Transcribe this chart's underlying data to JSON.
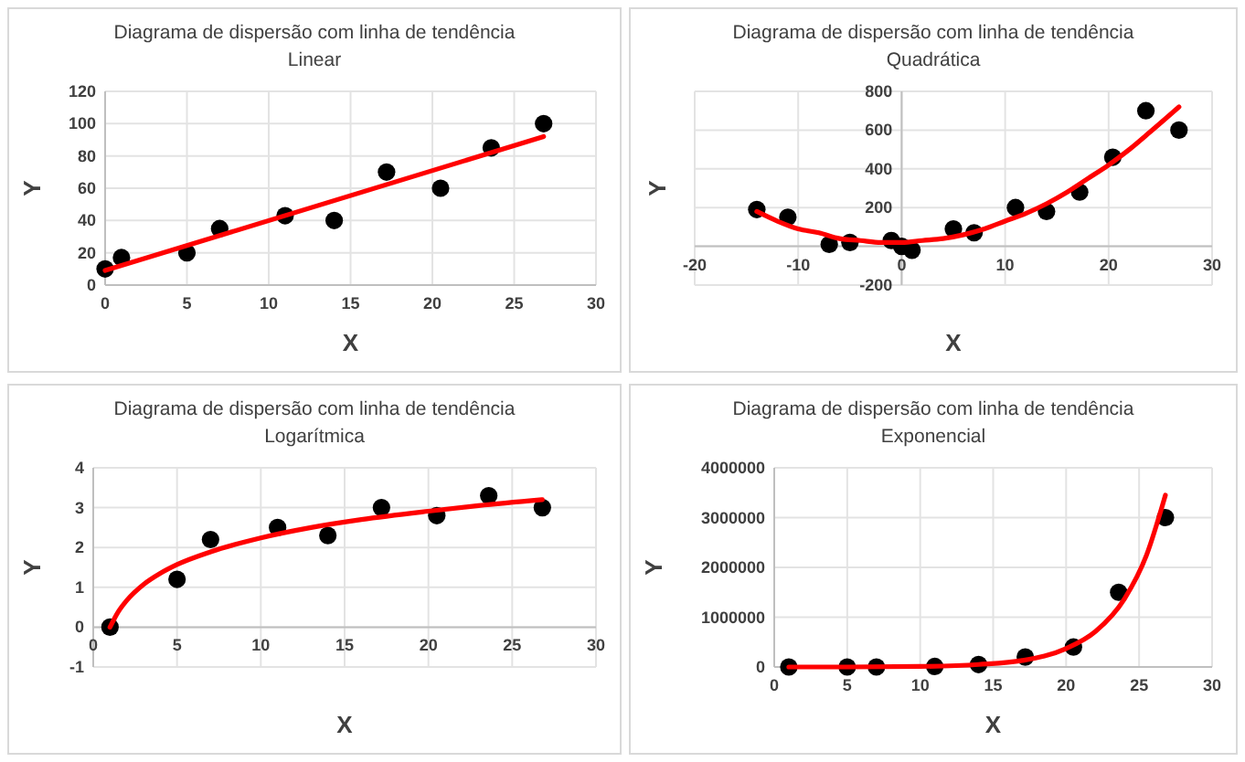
{
  "chart_data": [
    {
      "type": "scatter",
      "title": "Diagrama de dispersão com linha de tendência",
      "subtitle": "Linear",
      "xlabel": "X",
      "ylabel": "Y",
      "xlim": [
        0,
        30
      ],
      "xticks": [
        0,
        5,
        10,
        15,
        20,
        25,
        30
      ],
      "ylim": [
        0,
        120
      ],
      "yticks": [
        0,
        20,
        40,
        60,
        80,
        100,
        120
      ],
      "grid": true,
      "series": [
        {
          "type": "scatter",
          "color": "#000000",
          "marker": "circle",
          "x": [
            0,
            1,
            5,
            7,
            11,
            14,
            17.2,
            20.5,
            23.6,
            26.8
          ],
          "values": [
            10,
            17,
            20,
            35,
            43,
            40,
            70,
            60,
            85,
            100
          ]
        },
        {
          "type": "line",
          "color": "#ff0000",
          "marker": "none",
          "x": [
            0,
            26.8
          ],
          "values": [
            9,
            92
          ]
        }
      ]
    },
    {
      "type": "scatter",
      "title": "Diagrama de dispersão com linha de tendência",
      "subtitle": "Quadrática",
      "xlabel": "X",
      "ylabel": "Y",
      "xlim": [
        -20,
        30
      ],
      "xticks": [
        -20,
        -10,
        0,
        10,
        20,
        30
      ],
      "ylim": [
        -200,
        800
      ],
      "yticks": [
        -200,
        {
          "value": 0,
          "label": null
        },
        200,
        400,
        600,
        800
      ],
      "grid": true,
      "series": [
        {
          "type": "scatter",
          "color": "#000000",
          "marker": "circle",
          "x": [
            -14,
            -11,
            -7,
            -5,
            -1,
            0,
            1,
            5,
            7,
            11,
            14,
            17.2,
            20.4,
            23.6,
            26.8
          ],
          "values": [
            190,
            150,
            10,
            20,
            30,
            0,
            -20,
            90,
            70,
            200,
            180,
            280,
            460,
            700,
            600
          ]
        },
        {
          "type": "line",
          "color": "#ff0000",
          "marker": "none",
          "x": [
            -14,
            -12,
            -10,
            -8,
            -6,
            -4,
            -2,
            0,
            2,
            4,
            6,
            8,
            10,
            12,
            14,
            16,
            18,
            20,
            22,
            24,
            26.8
          ],
          "values": [
            180,
            130,
            90,
            70,
            40,
            30,
            20,
            20,
            30,
            40,
            60,
            90,
            130,
            170,
            220,
            280,
            350,
            420,
            500,
            590,
            720
          ]
        }
      ]
    },
    {
      "type": "scatter",
      "title": "Diagrama de dispersão com linha de tendência",
      "subtitle": "Logarítmica",
      "xlabel": "X",
      "ylabel": "Y",
      "xlim": [
        0,
        30
      ],
      "xticks": [
        0,
        5,
        10,
        15,
        20,
        25,
        30
      ],
      "ylim": [
        -1,
        4
      ],
      "yticks": [
        -1,
        0,
        1,
        2,
        3,
        4
      ],
      "grid": true,
      "series": [
        {
          "type": "scatter",
          "color": "#000000",
          "marker": "circle",
          "x": [
            1,
            5,
            7,
            11,
            14,
            17.2,
            20.5,
            23.6,
            26.8
          ],
          "values": [
            0,
            1.2,
            2.2,
            2.5,
            2.3,
            3,
            2.8,
            3.3,
            3
          ]
        },
        {
          "type": "line",
          "color": "#ff0000",
          "marker": "none",
          "x": [
            1,
            1.5,
            2,
            3,
            4,
            5,
            7,
            10,
            13,
            16,
            20,
            23,
            26.8
          ],
          "values": [
            0,
            0.39,
            0.67,
            1.07,
            1.35,
            1.57,
            1.89,
            2.24,
            2.5,
            2.7,
            2.91,
            3.05,
            3.2
          ]
        }
      ]
    },
    {
      "type": "scatter",
      "title": "Diagrama de dispersão com linha de tendência",
      "subtitle": "Exponencial",
      "xlabel": "X",
      "ylabel": "Y",
      "xlim": [
        0,
        30
      ],
      "xticks": [
        0,
        5,
        10,
        15,
        20,
        25,
        30
      ],
      "ylim": [
        0,
        4000000
      ],
      "yticks": [
        0,
        1000000,
        2000000,
        3000000,
        4000000
      ],
      "grid": true,
      "series": [
        {
          "type": "scatter",
          "color": "#000000",
          "marker": "circle",
          "x": [
            1,
            5,
            7,
            11,
            14,
            17.2,
            20.5,
            23.6,
            26.8
          ],
          "values": [
            0,
            0,
            0,
            10000,
            50000,
            200000,
            400000,
            1500000,
            3000000
          ]
        },
        {
          "type": "line",
          "color": "#ff0000",
          "marker": "none",
          "x": [
            1,
            5,
            10,
            14,
            17,
            20,
            22,
            24,
            25.5,
            26.8
          ],
          "values": [
            0,
            0,
            10000,
            50000,
            130000,
            370000,
            710000,
            1370000,
            2240000,
            3450000
          ]
        }
      ]
    }
  ]
}
